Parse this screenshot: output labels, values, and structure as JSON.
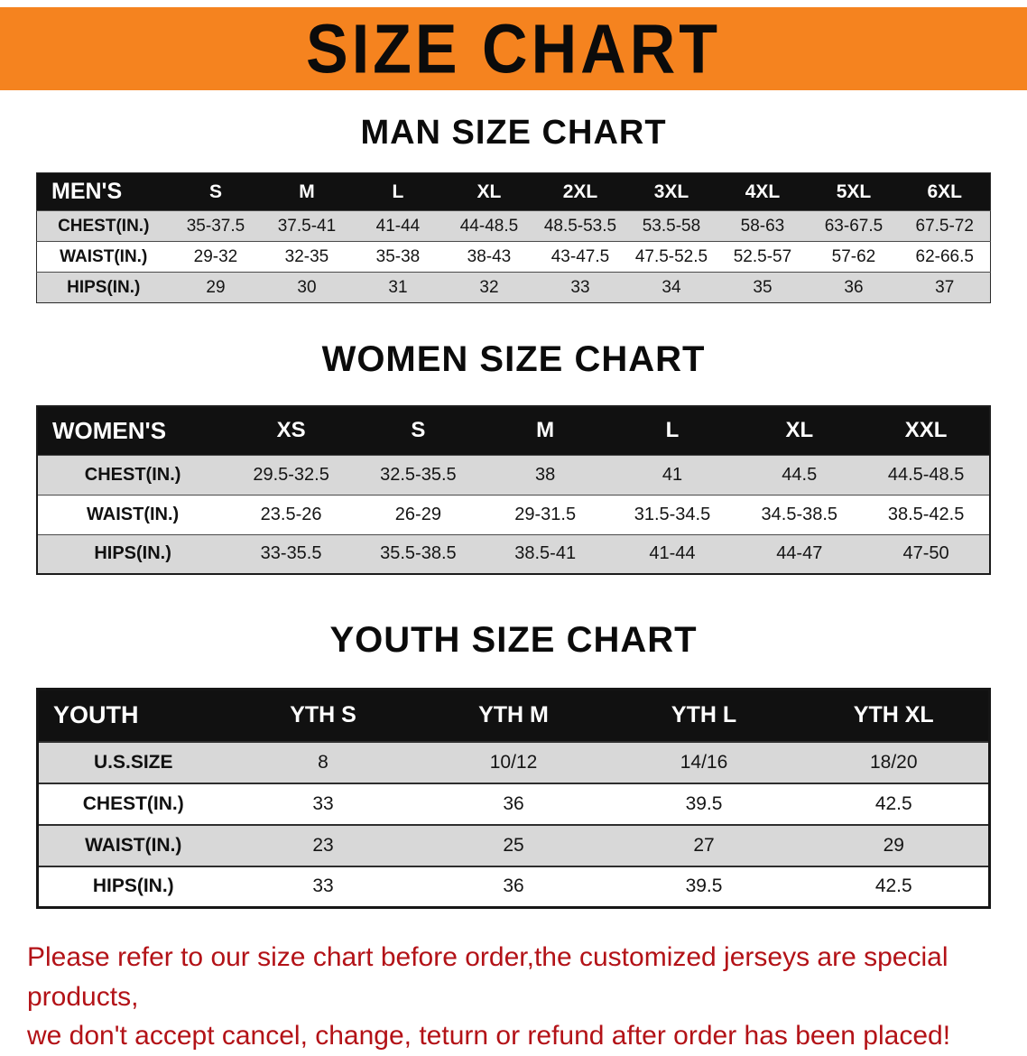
{
  "banner": {
    "title": "SIZE CHART"
  },
  "colors": {
    "banner_bg": "#f5831f",
    "table_header_bg": "#111111",
    "row_stripe": "#d8d8d8",
    "disclaimer_text": "#b31217"
  },
  "sections": [
    {
      "heading": "MAN SIZE CHART",
      "table": {
        "header": [
          "MEN'S",
          "S",
          "M",
          "L",
          "XL",
          "2XL",
          "3XL",
          "4XL",
          "5XL",
          "6XL"
        ],
        "rows": [
          [
            "CHEST(IN.)",
            "35-37.5",
            "37.5-41",
            "41-44",
            "44-48.5",
            "48.5-53.5",
            "53.5-58",
            "58-63",
            "63-67.5",
            "67.5-72"
          ],
          [
            "WAIST(IN.)",
            "29-32",
            "32-35",
            "35-38",
            "38-43",
            "43-47.5",
            "47.5-52.5",
            "52.5-57",
            "57-62",
            "62-66.5"
          ],
          [
            "HIPS(IN.)",
            "29",
            "30",
            "31",
            "32",
            "33",
            "34",
            "35",
            "36",
            "37"
          ]
        ]
      }
    },
    {
      "heading": "WOMEN SIZE CHART",
      "table": {
        "header": [
          "WOMEN'S",
          "XS",
          "S",
          "M",
          "L",
          "XL",
          "XXL"
        ],
        "rows": [
          [
            "CHEST(IN.)",
            "29.5-32.5",
            "32.5-35.5",
            "38",
            "41",
            "44.5",
            "44.5-48.5"
          ],
          [
            "WAIST(IN.)",
            "23.5-26",
            "26-29",
            "29-31.5",
            "31.5-34.5",
            "34.5-38.5",
            "38.5-42.5"
          ],
          [
            "HIPS(IN.)",
            "33-35.5",
            "35.5-38.5",
            "38.5-41",
            "41-44",
            "44-47",
            "47-50"
          ]
        ]
      }
    },
    {
      "heading": "YOUTH SIZE CHART",
      "table": {
        "header": [
          "YOUTH",
          "YTH S",
          "YTH M",
          "YTH L",
          "YTH XL"
        ],
        "rows": [
          [
            "U.S.SIZE",
            "8",
            "10/12",
            "14/16",
            "18/20"
          ],
          [
            "CHEST(IN.)",
            "33",
            "36",
            "39.5",
            "42.5"
          ],
          [
            "WAIST(IN.)",
            "23",
            "25",
            "27",
            "29"
          ],
          [
            "HIPS(IN.)",
            "33",
            "36",
            "39.5",
            "42.5"
          ]
        ]
      }
    }
  ],
  "footer": {
    "line1": "Please refer to our size chart before order,the customized jerseys are special products,",
    "line2": "we don't accept cancel, change, teturn or refund after order has been placed!"
  }
}
